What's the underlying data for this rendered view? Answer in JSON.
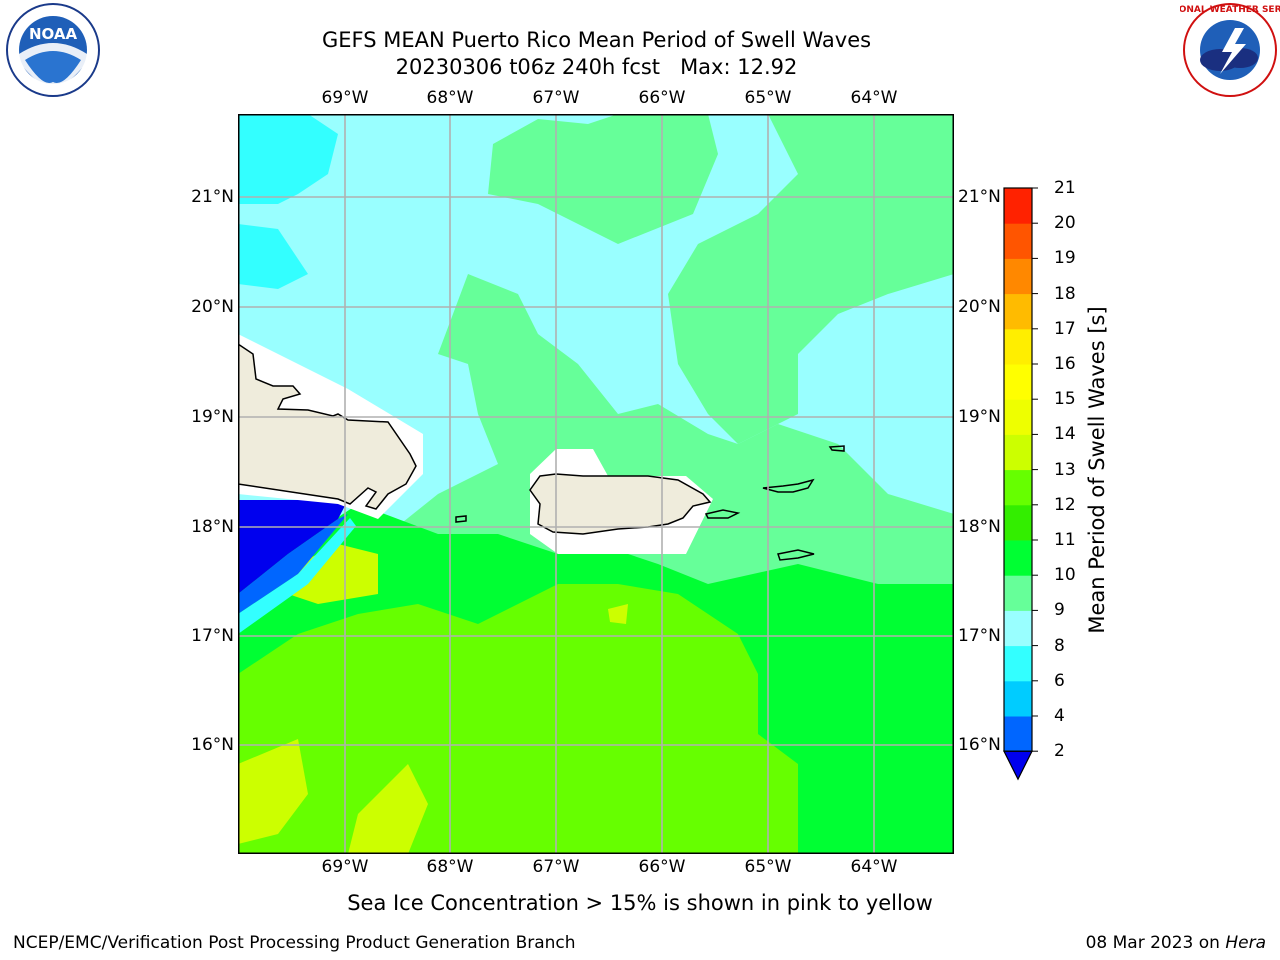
{
  "header": {
    "title_line1": "GEFS MEAN Puerto Rico Mean Period of Swell Waves",
    "title_line2": "20230306 t06z 240h fcst   Max: 12.92"
  },
  "map": {
    "lon_labels": [
      "69°W",
      "68°W",
      "67°W",
      "66°W",
      "65°W",
      "64°W"
    ],
    "lat_labels": [
      "21°N",
      "20°N",
      "19°N",
      "18°N",
      "17°N",
      "16°N"
    ],
    "colors": {
      "land": "#efecdc",
      "gridline": "#b0b0b0",
      "coast": "#000000",
      "frame": "#000000"
    }
  },
  "colorbar": {
    "label": "Mean Period of Swell Waves [s]",
    "ticks": [
      "2",
      "4",
      "6",
      "8",
      "9",
      "10",
      "11",
      "12",
      "13",
      "14",
      "15",
      "16",
      "17",
      "18",
      "19",
      "20",
      "21"
    ],
    "colors": [
      "#0066ff",
      "#00ccff",
      "#33ffff",
      "#99ffff",
      "#66ff99",
      "#00ff33",
      "#33ee00",
      "#66ff00",
      "#ccff00",
      "#eeff00",
      "#ffff00",
      "#ffee00",
      "#ffbb00",
      "#ff8800",
      "#ff5500",
      "#ff2200"
    ],
    "under_color": "#0000ee"
  },
  "note": "Sea Ice Concentration > 15% is shown in pink to yellow",
  "footer": {
    "left": "NCEP/EMC/Verification Post Processing Product Generation Branch",
    "date": "08 Mar 2023 on",
    "machine": "Hera"
  },
  "logos": {
    "noaa_text": "NOAA",
    "nws_text": "NATIONAL WEATHER SERVICE"
  }
}
